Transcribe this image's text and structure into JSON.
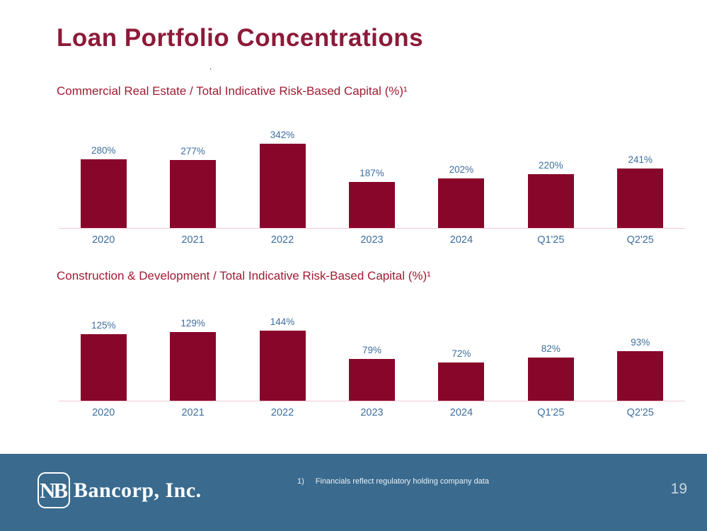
{
  "slide": {
    "title": "Loan Portfolio Concentrations",
    "stray_mark": ".",
    "page_number": "19",
    "footnote": {
      "marker": "1)",
      "text": "Financials reflect regulatory holding company data"
    },
    "logo": {
      "monogram": "NB",
      "company": "Bancorp, Inc."
    },
    "colors": {
      "bar": "#89062B",
      "title_maroon": "#8C1A38",
      "subtitle_crimson": "#A01B33",
      "label_blue": "#3E6E9E",
      "footer_blue": "#3A6B8F",
      "axis_pink": "#F3C9D3"
    }
  },
  "chart_data": [
    {
      "type": "bar",
      "title": "Commercial Real Estate / Total Indicative Risk-Based Capital (%)¹",
      "categories": [
        "2020",
        "2021",
        "2022",
        "2023",
        "2024",
        "Q1'25",
        "Q2'25"
      ],
      "values": [
        280,
        277,
        342,
        187,
        202,
        220,
        241
      ],
      "value_labels": [
        "280%",
        "277%",
        "342%",
        "187%",
        "202%",
        "220%",
        "241%"
      ],
      "ylim": [
        0,
        440
      ],
      "grid": false,
      "legend": "none",
      "bar_color": "#89062B",
      "label_color": "#3E6E9E"
    },
    {
      "type": "bar",
      "title": "Construction & Development / Total Indicative Risk-Based Capital (%)¹",
      "categories": [
        "2020",
        "2021",
        "2022",
        "2023",
        "2024",
        "Q1'25",
        "Q2'25"
      ],
      "values": [
        125,
        129,
        144,
        79,
        72,
        82,
        93
      ],
      "value_labels": [
        "125%",
        "129%",
        "144%",
        "79%",
        "72%",
        "82%",
        "93%"
      ],
      "ylim": [
        0,
        160
      ],
      "grid": false,
      "legend": "none",
      "bar_color": "#89062B",
      "label_color": "#3E6E9E"
    }
  ]
}
